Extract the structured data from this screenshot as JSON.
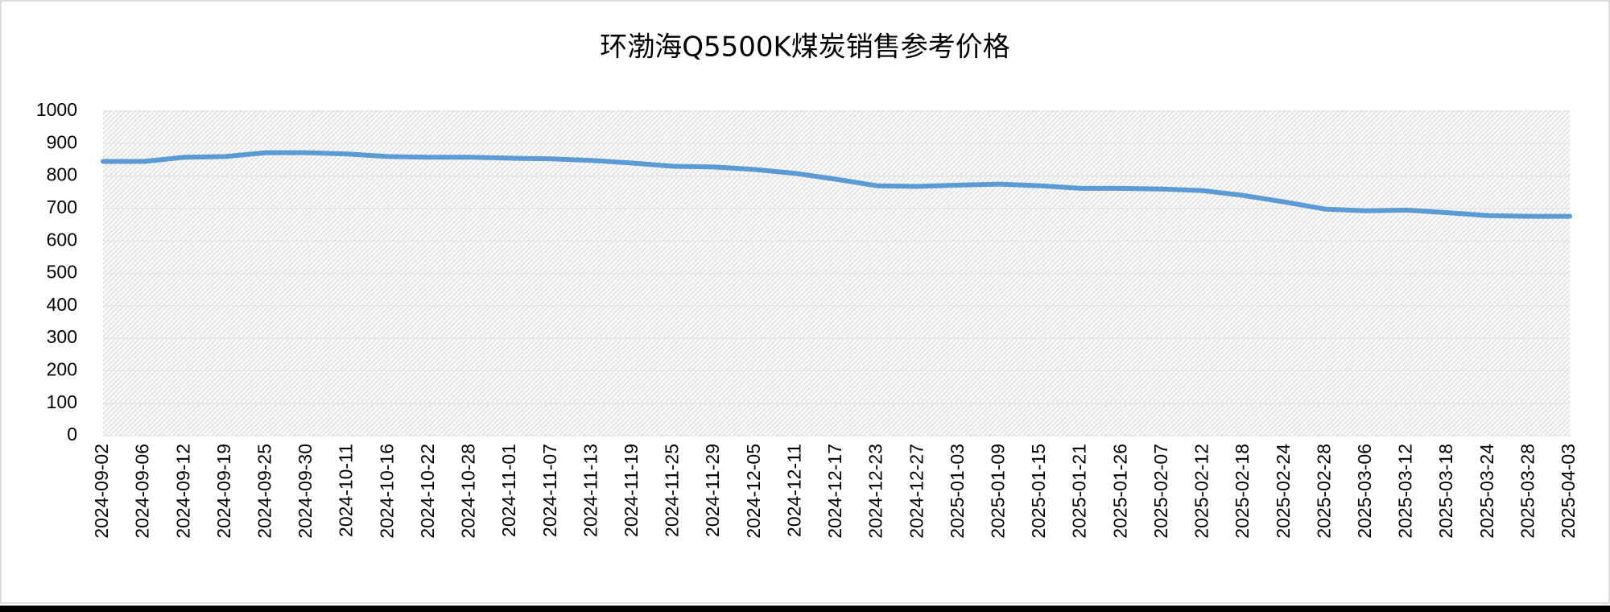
{
  "chart_data": {
    "type": "line",
    "title": "环渤海Q5500K煤炭销售参考价格",
    "categories": [
      "2024-09-02",
      "2024-09-06",
      "2024-09-12",
      "2024-09-19",
      "2024-09-25",
      "2024-09-30",
      "2024-10-11",
      "2024-10-16",
      "2024-10-22",
      "2024-10-28",
      "2024-11-01",
      "2024-11-07",
      "2024-11-13",
      "2024-11-19",
      "2024-11-25",
      "2024-11-29",
      "2024-12-05",
      "2024-12-11",
      "2024-12-17",
      "2024-12-23",
      "2024-12-27",
      "2025-01-03",
      "2025-01-09",
      "2025-01-15",
      "2025-01-21",
      "2025-01-26",
      "2025-02-07",
      "2025-02-12",
      "2025-02-18",
      "2025-02-24",
      "2025-02-28",
      "2025-03-06",
      "2025-03-12",
      "2025-03-18",
      "2025-03-24",
      "2025-03-28",
      "2025-04-03"
    ],
    "values": [
      845,
      845,
      858,
      860,
      872,
      872,
      868,
      860,
      858,
      858,
      855,
      853,
      848,
      840,
      830,
      828,
      820,
      808,
      790,
      770,
      768,
      772,
      775,
      770,
      762,
      762,
      760,
      755,
      740,
      720,
      698,
      693,
      695,
      687,
      678,
      676,
      676
    ],
    "color": "#5b9bd5",
    "ylim": [
      0,
      1000
    ],
    "yticks": [
      0,
      100,
      200,
      300,
      400,
      500,
      600,
      700,
      800,
      900,
      1000
    ],
    "grid": true
  }
}
